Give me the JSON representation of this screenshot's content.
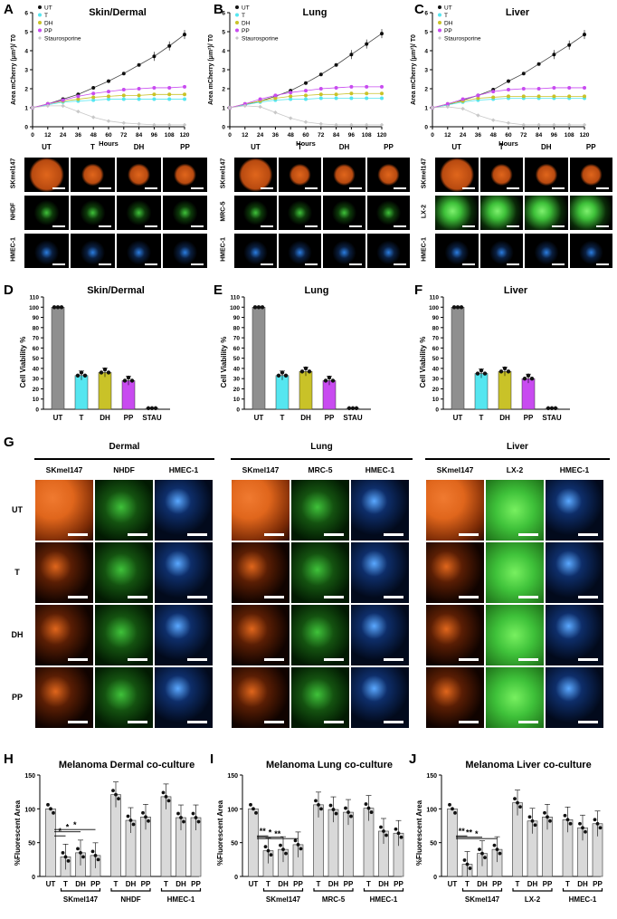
{
  "panels": {
    "A": "A",
    "B": "B",
    "C": "C",
    "D": "D",
    "E": "E",
    "F": "F",
    "G": "G",
    "H": "H",
    "I": "I",
    "J": "J"
  },
  "colors": {
    "UT": "#111111",
    "T": "#55e6f0",
    "DH": "#c9c228",
    "PP": "#c84bf0",
    "STAU": "#c8c8c8",
    "orange": "#e0661c",
    "green": "#3fc23a",
    "blue": "#2b7de0",
    "bar_gray": "#8f8f8f",
    "bar_light": "#d9d9d9"
  },
  "growth_common": {
    "ylabel": "Area mCherry (μm²)/ T0",
    "xlabel": "Hours",
    "xticks": [
      "0",
      "12",
      "24",
      "36",
      "48",
      "60",
      "72",
      "84",
      "96",
      "108",
      "120"
    ],
    "yticks": [
      "0",
      "1",
      "2",
      "3",
      "4",
      "5",
      "6"
    ],
    "legend": [
      "UT",
      "T",
      "DH",
      "PP",
      "Staurosporine"
    ]
  },
  "sphere_cols": [
    "UT",
    "T",
    "DH",
    "PP"
  ],
  "viab_common": {
    "ylabel": "Cell Viability %",
    "yticks": [
      "0",
      "10",
      "20",
      "30",
      "40",
      "50",
      "60",
      "70",
      "80",
      "90",
      "100",
      "110"
    ],
    "cats": [
      "UT",
      "T",
      "DH",
      "PP",
      "STAU"
    ]
  },
  "chart_data": [
    {
      "type": "line",
      "title": "Skin/Dermal",
      "xlabel": "Hours",
      "ylabel": "Area mCherry (μm²)/ T0",
      "x": [
        0,
        12,
        24,
        36,
        48,
        60,
        72,
        84,
        96,
        108,
        120
      ],
      "ylim": [
        0,
        6
      ],
      "series": [
        {
          "name": "UT",
          "values": [
            1.0,
            1.2,
            1.45,
            1.7,
            2.05,
            2.4,
            2.8,
            3.25,
            3.7,
            4.25,
            4.85
          ]
        },
        {
          "name": "T",
          "values": [
            1.0,
            1.15,
            1.3,
            1.35,
            1.4,
            1.45,
            1.45,
            1.45,
            1.45,
            1.45,
            1.45
          ]
        },
        {
          "name": "DH",
          "values": [
            1.0,
            1.2,
            1.35,
            1.45,
            1.55,
            1.6,
            1.65,
            1.65,
            1.7,
            1.7,
            1.7
          ]
        },
        {
          "name": "PP",
          "values": [
            1.0,
            1.2,
            1.4,
            1.6,
            1.75,
            1.85,
            1.95,
            2.0,
            2.05,
            2.05,
            2.1
          ]
        },
        {
          "name": "Staurosporine",
          "values": [
            1.0,
            1.1,
            1.1,
            0.8,
            0.5,
            0.3,
            0.2,
            0.15,
            0.1,
            0.1,
            0.1
          ]
        }
      ]
    },
    {
      "type": "line",
      "title": "Lung",
      "xlabel": "Hours",
      "ylabel": "Area mCherry (μm²)/ T0",
      "x": [
        0,
        12,
        24,
        36,
        48,
        60,
        72,
        84,
        96,
        108,
        120
      ],
      "ylim": [
        0,
        6
      ],
      "series": [
        {
          "name": "UT",
          "values": [
            1.0,
            1.15,
            1.35,
            1.6,
            1.9,
            2.3,
            2.75,
            3.25,
            3.8,
            4.35,
            4.9
          ]
        },
        {
          "name": "T",
          "values": [
            1.0,
            1.15,
            1.3,
            1.4,
            1.45,
            1.45,
            1.5,
            1.5,
            1.5,
            1.5,
            1.5
          ]
        },
        {
          "name": "DH",
          "values": [
            1.0,
            1.2,
            1.35,
            1.5,
            1.6,
            1.65,
            1.7,
            1.7,
            1.75,
            1.75,
            1.75
          ]
        },
        {
          "name": "PP",
          "values": [
            1.0,
            1.2,
            1.45,
            1.65,
            1.8,
            1.9,
            2.0,
            2.05,
            2.1,
            2.1,
            2.1
          ]
        },
        {
          "name": "Staurosporine",
          "values": [
            1.0,
            1.1,
            1.05,
            0.75,
            0.45,
            0.25,
            0.15,
            0.1,
            0.1,
            0.1,
            0.1
          ]
        }
      ]
    },
    {
      "type": "line",
      "title": "Liver",
      "xlabel": "Hours",
      "ylabel": "Area mCherry (μm²)/ T0",
      "x": [
        0,
        12,
        24,
        36,
        48,
        60,
        72,
        84,
        96,
        108,
        120
      ],
      "ylim": [
        0,
        6
      ],
      "series": [
        {
          "name": "UT",
          "values": [
            1.0,
            1.15,
            1.4,
            1.65,
            1.95,
            2.4,
            2.8,
            3.3,
            3.8,
            4.3,
            4.85
          ]
        },
        {
          "name": "T",
          "values": [
            1.0,
            1.15,
            1.3,
            1.4,
            1.45,
            1.5,
            1.5,
            1.5,
            1.5,
            1.5,
            1.5
          ]
        },
        {
          "name": "DH",
          "values": [
            1.0,
            1.2,
            1.35,
            1.5,
            1.55,
            1.6,
            1.6,
            1.6,
            1.6,
            1.6,
            1.6
          ]
        },
        {
          "name": "PP",
          "values": [
            1.0,
            1.2,
            1.45,
            1.65,
            1.85,
            1.95,
            2.0,
            2.0,
            2.05,
            2.05,
            2.05
          ]
        },
        {
          "name": "Staurosporine",
          "values": [
            1.0,
            1.05,
            0.95,
            0.6,
            0.35,
            0.2,
            0.1,
            0.1,
            0.1,
            0.1,
            0.1
          ]
        }
      ]
    },
    {
      "type": "bar",
      "title": "Skin/Dermal",
      "ylabel": "Cell Viability %",
      "ylim": [
        0,
        110
      ],
      "categories": [
        "UT",
        "T",
        "DH",
        "PP",
        "STAU"
      ],
      "values": [
        100,
        33,
        36,
        28,
        1
      ]
    },
    {
      "type": "bar",
      "title": "Lung",
      "ylabel": "Cell Viability %",
      "ylim": [
        0,
        110
      ],
      "categories": [
        "UT",
        "T",
        "DH",
        "PP",
        "STAU"
      ],
      "values": [
        100,
        33,
        37,
        28,
        1
      ]
    },
    {
      "type": "bar",
      "title": "Liver",
      "ylabel": "Cell Viability %",
      "ylim": [
        0,
        110
      ],
      "categories": [
        "UT",
        "T",
        "DH",
        "PP",
        "STAU"
      ],
      "values": [
        100,
        35,
        37,
        30,
        1
      ]
    },
    {
      "type": "bar",
      "title": "Melanoma Dermal co-culture",
      "ylabel": "%Fluorescent Area",
      "ylim": [
        0,
        150
      ],
      "categories": [
        "UT",
        "T",
        "DH",
        "PP",
        "T",
        "DH",
        "PP",
        "T",
        "DH",
        "PP"
      ],
      "values": [
        100,
        29,
        35,
        31,
        121,
        83,
        88,
        118,
        87,
        87
      ],
      "groups": [
        "SKmel147",
        "NHDF",
        "HMEC-1"
      ],
      "stars": [
        "*",
        "*",
        "*"
      ]
    },
    {
      "type": "bar",
      "title": "Melanoma Lung co-culture",
      "ylabel": "%Fluorescent Area",
      "ylim": [
        0,
        150
      ],
      "categories": [
        "UT",
        "T",
        "DH",
        "PP",
        "T",
        "DH",
        "PP",
        "T",
        "DH",
        "PP"
      ],
      "values": [
        100,
        38,
        40,
        47,
        106,
        99,
        95,
        101,
        67,
        64
      ],
      "groups": [
        "SKmel147",
        "MRC-5",
        "HMEC-1"
      ],
      "stars": [
        "**",
        "*",
        "**"
      ]
    },
    {
      "type": "bar",
      "title": "Melanoma Liver co-culture",
      "ylabel": "%Fluorescent Area",
      "ylim": [
        0,
        150
      ],
      "categories": [
        "UT",
        "T",
        "DH",
        "PP",
        "T",
        "DH",
        "PP",
        "T",
        "DH",
        "PP"
      ],
      "values": [
        100,
        18,
        34,
        40,
        109,
        82,
        88,
        84,
        72,
        78
      ],
      "groups": [
        "SKmel147",
        "LX-2",
        "HMEC-1"
      ],
      "stars": [
        "**",
        "**",
        "*"
      ]
    }
  ],
  "spheroid_rows": {
    "A": [
      "SKmel147",
      "NHDF",
      "HMEC-1"
    ],
    "B": [
      "SKmel147",
      "MRC-5",
      "HMEC-1"
    ],
    "C": [
      "SKmel147",
      "LX-2",
      "HMEC-1"
    ]
  },
  "g_panel": {
    "sections": [
      "Dermal",
      "Lung",
      "Liver"
    ],
    "cols": [
      "SKmel147",
      "NHDF",
      "HMEC-1",
      "SKmel147",
      "MRC-5",
      "HMEC-1",
      "SKmel147",
      "LX-2",
      "HMEC-1"
    ],
    "rows": [
      "UT",
      "T",
      "DH",
      "PP"
    ]
  },
  "cc_common": {
    "ylabel": "%Fluorescent Area",
    "yticks": [
      "0",
      "50",
      "100",
      "150"
    ]
  }
}
